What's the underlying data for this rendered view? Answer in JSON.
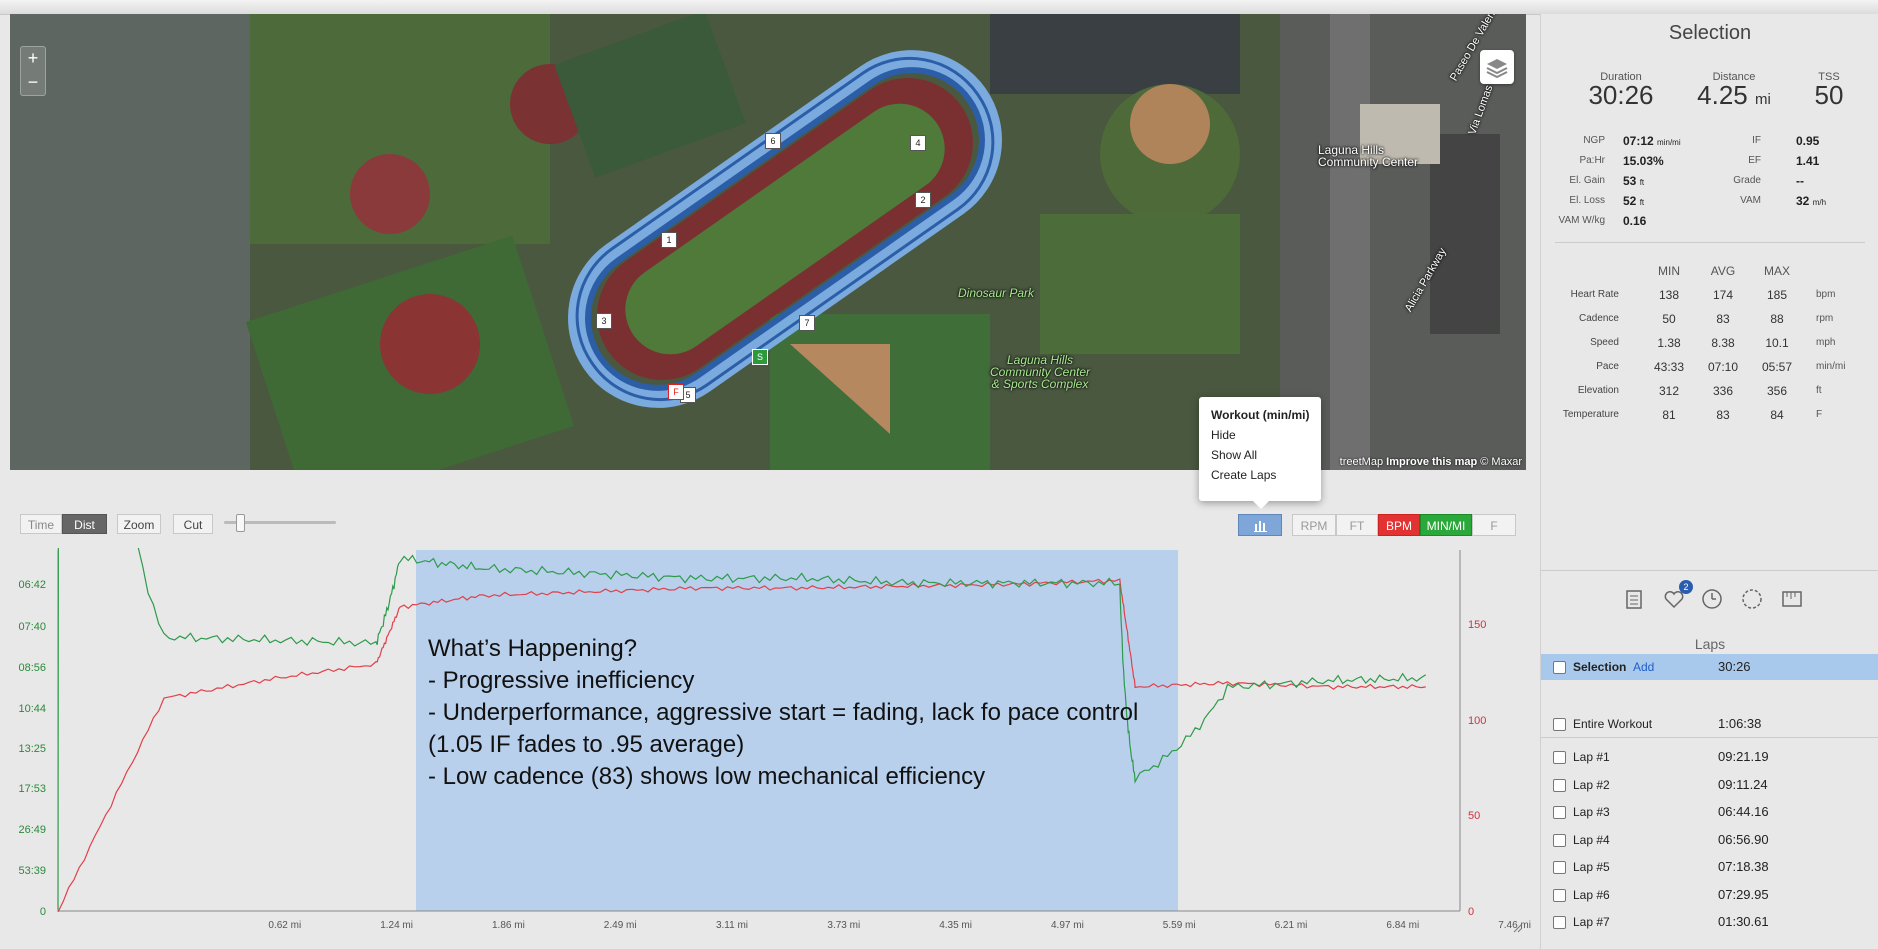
{
  "map": {
    "labels": {
      "dinosaur_park": "Dinosaur Park",
      "community_center": "Laguna Hills\nCommunity Center",
      "sports_complex": "Laguna Hills\nCommunity Center\n& Sports Complex",
      "street_paseo": "Paseo De Valencia",
      "street_alicia": "Alicia Parkway",
      "street_via": "Via Lomas"
    },
    "attribution_prefix": "treetMap ",
    "attribution_link": "Improve this map",
    "attribution_suffix": " © Maxar",
    "zoom_in": "+",
    "zoom_out": "−",
    "lap_markers": [
      "1",
      "2",
      "3",
      "4",
      "5",
      "6",
      "7"
    ],
    "start_marker": "S",
    "finish_marker": "F"
  },
  "popup": {
    "title": "Workout (min/mi)",
    "items": [
      "Hide",
      "Show All",
      "Create Laps"
    ]
  },
  "toolbar": {
    "time": "Time",
    "dist": "Dist",
    "zoom": "Zoom",
    "cut": "Cut",
    "rpm": "RPM",
    "ft": "FT",
    "bpm": "BPM",
    "minmi": "MIN/MI",
    "f": "F"
  },
  "chart": {
    "y_left_ticks": [
      "06:42",
      "07:40",
      "08:56",
      "10:44",
      "13:25",
      "17:53",
      "26:49",
      "53:39",
      "0"
    ],
    "y_right_ticks": [
      "150",
      "100",
      "50",
      "0"
    ],
    "x_ticks": [
      "0.62 mi",
      "1.24 mi",
      "1.86 mi",
      "2.49 mi",
      "3.11 mi",
      "3.73 mi",
      "4.35 mi",
      "4.97 mi",
      "5.59 mi",
      "6.21 mi",
      "6.84 mi",
      "7.46 mi"
    ],
    "colors": {
      "pace": "#2e9a4a",
      "hr": "#e0404a",
      "selection": "#b8d0ec"
    }
  },
  "chart_data": {
    "type": "line",
    "x": [
      0,
      0.62,
      1.24,
      1.86,
      2.0,
      2.49,
      3.11,
      3.73,
      4.35,
      4.97,
      5.59,
      6.21,
      6.3,
      6.84,
      7.46,
      8.0
    ],
    "xlabel": "",
    "ylabel": "",
    "series": [
      {
        "values": [
          0,
          112,
          122,
          130,
          160,
          166,
          168,
          170,
          170,
          171,
          172,
          174,
          118,
          120,
          118,
          118
        ]
      },
      {
        "values": [
          0,
          8.5,
          8.6,
          8.7,
          6.6,
          6.8,
          6.9,
          7.0,
          7.0,
          7.1,
          7.1,
          7.1,
          17.5,
          10.4,
          10.1,
          10.0
        ]
      }
    ],
    "selection": [
      1.9,
      6.2
    ]
  },
  "note": {
    "line1": "What’s Happening?",
    "line2": "- Progressive inefficiency",
    "line3": "- Underperformance, aggressive start = fading, lack fo pace control (1.05 IF fades to .95 average)",
    "line4": "- Low cadence (83) shows low mechanical efficiency"
  },
  "panel": {
    "title": "Selection",
    "duration_label": "Duration",
    "duration_value": "30:26",
    "distance_label": "Distance",
    "distance_value": "4.25",
    "distance_unit": "mi",
    "tss_label": "TSS",
    "tss_value": "50",
    "metrics_left": [
      {
        "label": "NGP",
        "value": "07:12",
        "unit": "min/mi"
      },
      {
        "label": "Pa:Hr",
        "value": "15.03%",
        "unit": ""
      },
      {
        "label": "El. Gain",
        "value": "53",
        "unit": "ft"
      },
      {
        "label": "El. Loss",
        "value": "52",
        "unit": "ft"
      },
      {
        "label": "VAM W/kg",
        "value": "0.16",
        "unit": ""
      }
    ],
    "metrics_right": [
      {
        "label": "IF",
        "value": "0.95",
        "unit": ""
      },
      {
        "label": "EF",
        "value": "1.41",
        "unit": ""
      },
      {
        "label": "Grade",
        "value": "--",
        "unit": ""
      },
      {
        "label": "VAM",
        "value": "32",
        "unit": "m/h"
      }
    ],
    "table_headers": [
      "MIN",
      "AVG",
      "MAX"
    ],
    "table_rows": [
      {
        "label": "Heart Rate",
        "min": "138",
        "avg": "174",
        "max": "185",
        "unit": "bpm"
      },
      {
        "label": "Cadence",
        "min": "50",
        "avg": "83",
        "max": "88",
        "unit": "rpm"
      },
      {
        "label": "Speed",
        "min": "1.38",
        "avg": "8.38",
        "max": "10.1",
        "unit": "mph"
      },
      {
        "label": "Pace",
        "min": "43:33",
        "avg": "07:10",
        "max": "05:57",
        "unit": "min/mi"
      },
      {
        "label": "Elevation",
        "min": "312",
        "avg": "336",
        "max": "356",
        "unit": "ft"
      },
      {
        "label": "Temperature",
        "min": "81",
        "avg": "83",
        "max": "84",
        "unit": "F"
      }
    ],
    "badge": "2",
    "laps_title": "Laps",
    "selection_row": {
      "name": "Selection",
      "add": "Add",
      "time": "30:26"
    },
    "laps": [
      {
        "name": "Entire Workout",
        "time": "1:06:38"
      },
      {
        "name": "Lap #1",
        "time": "09:21.19"
      },
      {
        "name": "Lap #2",
        "time": "09:11.24"
      },
      {
        "name": "Lap #3",
        "time": "06:44.16"
      },
      {
        "name": "Lap #4",
        "time": "06:56.90"
      },
      {
        "name": "Lap #5",
        "time": "07:18.38"
      },
      {
        "name": "Lap #6",
        "time": "07:29.95"
      },
      {
        "name": "Lap #7",
        "time": "01:30.61"
      }
    ]
  }
}
